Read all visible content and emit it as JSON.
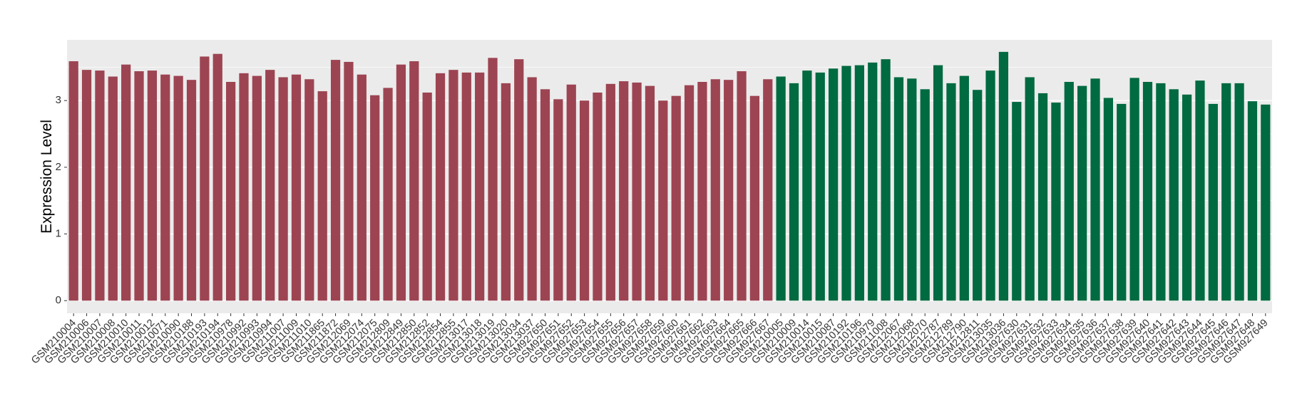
{
  "chart_data": {
    "type": "bar",
    "y_label": "Expression Level",
    "ylim": [
      -0.19,
      3.91
    ],
    "yticks": [
      0,
      1,
      2,
      3
    ],
    "grid": true,
    "series": [
      {
        "color": "#9d4452",
        "categories": [
          "GSM210004",
          "GSM210006",
          "GSM210007",
          "GSM210008",
          "GSM210010",
          "GSM210011",
          "GSM210012",
          "GSM210071",
          "GSM210090",
          "GSM210188",
          "GSM210193",
          "GSM210194",
          "GSM210978",
          "GSM210992",
          "GSM210993",
          "GSM210994",
          "GSM211007",
          "GSM211009",
          "GSM211010",
          "GSM211865",
          "GSM211872",
          "GSM212069",
          "GSM212074",
          "GSM212075",
          "GSM212809",
          "GSM212849",
          "GSM212850",
          "GSM212852",
          "GSM212854",
          "GSM212855",
          "GSM213017",
          "GSM213018",
          "GSM213019",
          "GSM213020",
          "GSM213034",
          "GSM213037",
          "GSM927650",
          "GSM927651",
          "GSM927652",
          "GSM927653",
          "GSM927654",
          "GSM927655",
          "GSM927656",
          "GSM927657",
          "GSM927658",
          "GSM927659",
          "GSM927660",
          "GSM927661",
          "GSM927662",
          "GSM927663",
          "GSM927664",
          "GSM927665",
          "GSM927666",
          "GSM927667"
        ],
        "values": [
          3.59,
          3.46,
          3.45,
          3.36,
          3.54,
          3.44,
          3.45,
          3.39,
          3.37,
          3.31,
          3.66,
          3.7,
          3.28,
          3.41,
          3.37,
          3.46,
          3.35,
          3.39,
          3.32,
          3.14,
          3.61,
          3.58,
          3.39,
          3.08,
          3.19,
          3.54,
          3.59,
          3.12,
          3.41,
          3.46,
          3.42,
          3.42,
          3.64,
          3.26,
          3.62,
          3.35,
          3.17,
          3.02,
          3.24,
          3.0,
          3.12,
          3.25,
          3.29,
          3.27,
          3.22,
          3.0,
          3.07,
          3.23,
          3.28,
          3.32,
          3.31,
          3.44,
          3.07,
          3.32
        ]
      },
      {
        "color": "#006a41",
        "categories": [
          "GSM210005",
          "GSM210009",
          "GSM210014",
          "GSM210015",
          "GSM210087",
          "GSM210192",
          "GSM210196",
          "GSM210979",
          "GSM211008",
          "GSM212067",
          "GSM212068",
          "GSM212070",
          "GSM212787",
          "GSM212789",
          "GSM212790",
          "GSM212811",
          "GSM213035",
          "GSM213036",
          "GSM927630",
          "GSM927631",
          "GSM927632",
          "GSM927633",
          "GSM927634",
          "GSM927635",
          "GSM927636",
          "GSM927637",
          "GSM927638",
          "GSM927639",
          "GSM927640",
          "GSM927641",
          "GSM927642",
          "GSM927643",
          "GSM927644",
          "GSM927645",
          "GSM927646",
          "GSM927647",
          "GSM927648",
          "GSM927649"
        ],
        "values": [
          3.36,
          3.26,
          3.45,
          3.42,
          3.48,
          3.52,
          3.53,
          3.57,
          3.62,
          3.35,
          3.33,
          3.17,
          3.53,
          3.26,
          3.37,
          3.16,
          3.45,
          3.73,
          2.98,
          3.35,
          3.11,
          2.97,
          3.28,
          3.22,
          3.33,
          3.04,
          2.95,
          3.34,
          3.28,
          3.26,
          3.17,
          3.09,
          3.3,
          2.95,
          3.26,
          3.26,
          2.99,
          2.94
        ]
      }
    ]
  }
}
